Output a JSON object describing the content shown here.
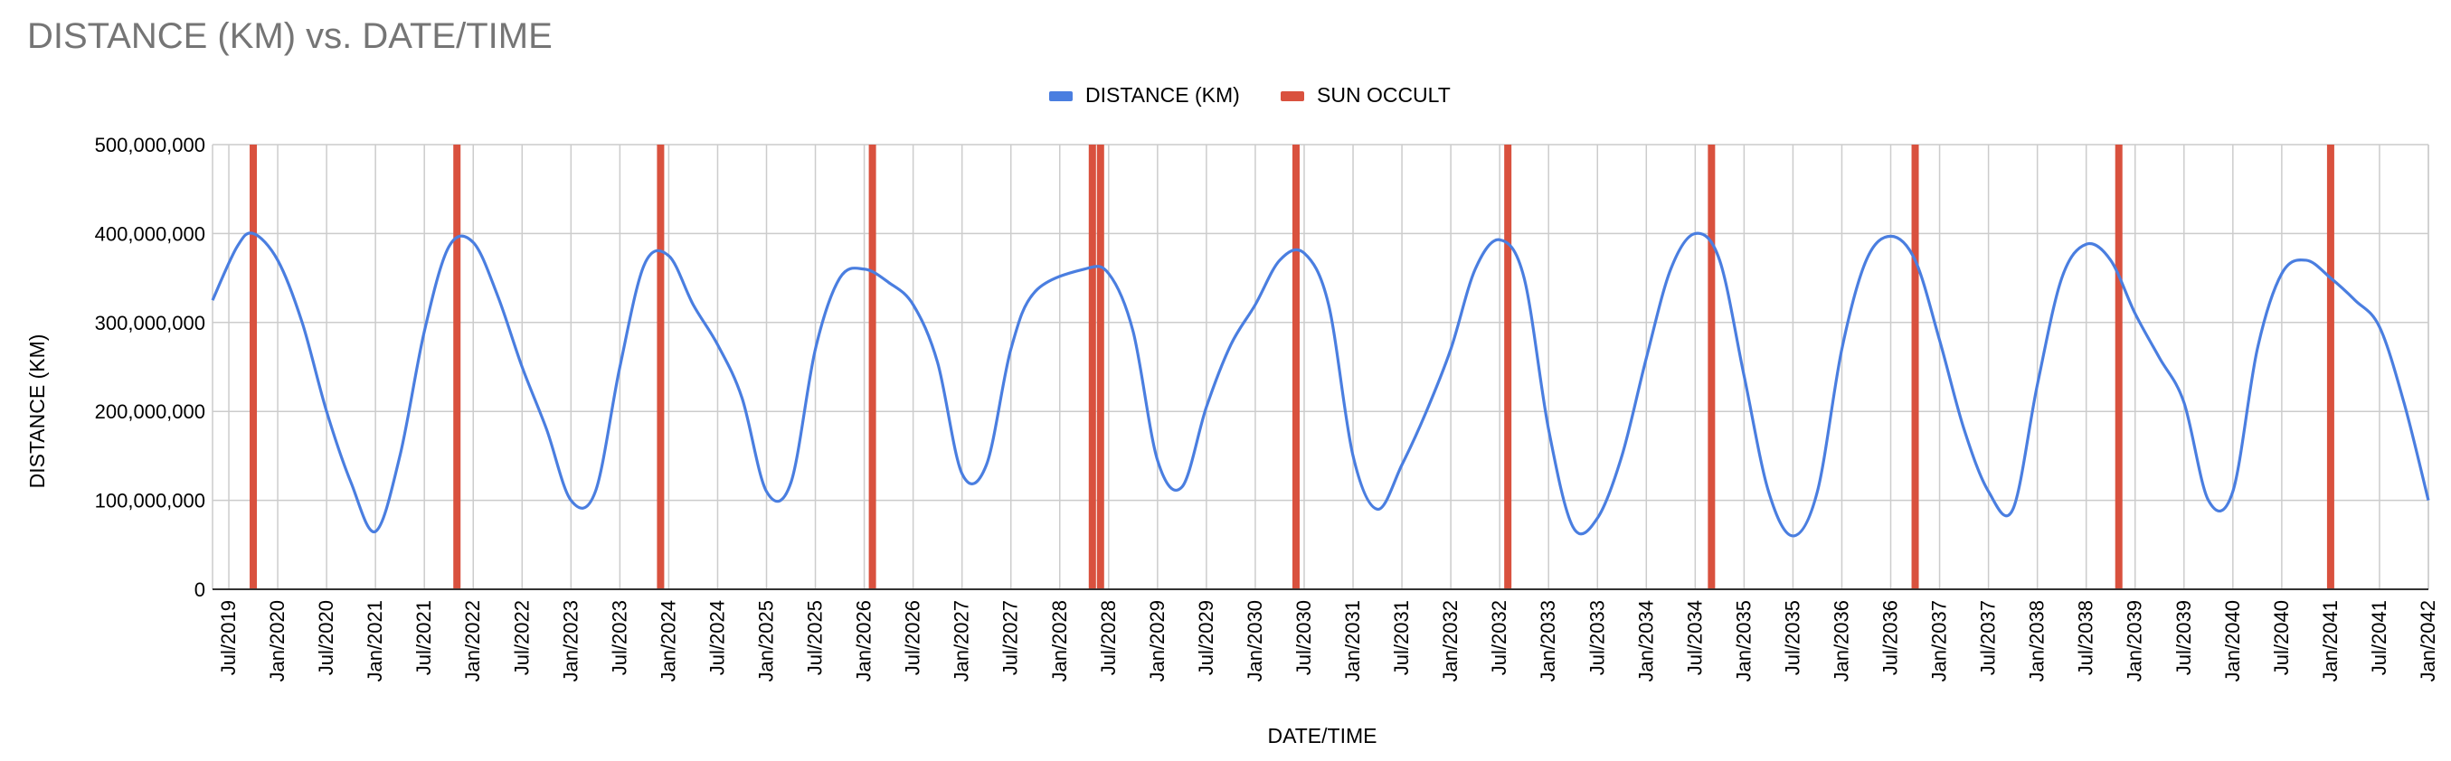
{
  "chart_data": {
    "type": "line",
    "title": "DISTANCE (KM) vs. DATE/TIME",
    "xlabel": "DATE/TIME",
    "ylabel": "DISTANCE (KM)",
    "ylim": [
      0,
      500000000
    ],
    "y_ticks": [
      "0",
      "100,000,000",
      "200,000,000",
      "300,000,000",
      "400,000,000",
      "500,000,000"
    ],
    "xlim": [
      "2019-05",
      "2042-01"
    ],
    "x_ticks": [
      "Jul/2019",
      "Jan/2020",
      "Jul/2020",
      "Jan/2021",
      "Jul/2021",
      "Jan/2022",
      "Jul/2022",
      "Jan/2023",
      "Jul/2023",
      "Jan/2024",
      "Jul/2024",
      "Jan/2025",
      "Jul/2025",
      "Jan/2026",
      "Jul/2026",
      "Jan/2027",
      "Jul/2027",
      "Jan/2028",
      "Jul/2028",
      "Jan/2029",
      "Jul/2029",
      "Jan/2030",
      "Jul/2030",
      "Jan/2031",
      "Jul/2031",
      "Jan/2032",
      "Jul/2032",
      "Jan/2033",
      "Jul/2033",
      "Jan/2034",
      "Jul/2034",
      "Jan/2035",
      "Jul/2035",
      "Jan/2036",
      "Jul/2036",
      "Jan/2037",
      "Jul/2037",
      "Jan/2038",
      "Jul/2038",
      "Jan/2039",
      "Jul/2039",
      "Jan/2040",
      "Jul/2040",
      "Jan/2041",
      "Jul/2041",
      "Jan/2042"
    ],
    "grid": true,
    "legend_position": "top-center",
    "series": [
      {
        "name": "DISTANCE (KM)",
        "kind": "line",
        "color": "#4a7ee0",
        "points": [
          [
            "2019-05",
            325000000
          ],
          [
            "2019-08",
            385000000
          ],
          [
            "2019-10",
            400000000
          ],
          [
            "2020-01",
            370000000
          ],
          [
            "2020-04",
            300000000
          ],
          [
            "2020-07",
            200000000
          ],
          [
            "2020-10",
            120000000
          ],
          [
            "2021-01",
            65000000
          ],
          [
            "2021-04",
            150000000
          ],
          [
            "2021-07",
            290000000
          ],
          [
            "2021-10",
            385000000
          ],
          [
            "2022-01",
            390000000
          ],
          [
            "2022-04",
            330000000
          ],
          [
            "2022-07",
            250000000
          ],
          [
            "2022-10",
            180000000
          ],
          [
            "2023-01",
            100000000
          ],
          [
            "2023-04",
            110000000
          ],
          [
            "2023-07",
            250000000
          ],
          [
            "2023-10",
            365000000
          ],
          [
            "2024-01",
            375000000
          ],
          [
            "2024-04",
            320000000
          ],
          [
            "2024-07",
            275000000
          ],
          [
            "2024-10",
            215000000
          ],
          [
            "2025-01",
            110000000
          ],
          [
            "2025-04",
            120000000
          ],
          [
            "2025-07",
            270000000
          ],
          [
            "2025-10",
            350000000
          ],
          [
            "2026-01",
            360000000
          ],
          [
            "2026-04",
            345000000
          ],
          [
            "2026-07",
            320000000
          ],
          [
            "2026-10",
            255000000
          ],
          [
            "2027-01",
            130000000
          ],
          [
            "2027-04",
            140000000
          ],
          [
            "2027-07",
            270000000
          ],
          [
            "2027-10",
            335000000
          ],
          [
            "2028-04",
            360000000
          ],
          [
            "2028-07",
            355000000
          ],
          [
            "2028-10",
            290000000
          ],
          [
            "2029-01",
            145000000
          ],
          [
            "2029-04",
            115000000
          ],
          [
            "2029-07",
            205000000
          ],
          [
            "2029-10",
            275000000
          ],
          [
            "2030-01",
            320000000
          ],
          [
            "2030-04",
            370000000
          ],
          [
            "2030-07",
            378000000
          ],
          [
            "2030-10",
            320000000
          ],
          [
            "2031-01",
            150000000
          ],
          [
            "2031-04",
            90000000
          ],
          [
            "2031-07",
            140000000
          ],
          [
            "2031-10",
            200000000
          ],
          [
            "2032-01",
            270000000
          ],
          [
            "2032-04",
            360000000
          ],
          [
            "2032-07",
            393000000
          ],
          [
            "2032-10",
            350000000
          ],
          [
            "2033-01",
            180000000
          ],
          [
            "2033-04",
            70000000
          ],
          [
            "2033-07",
            80000000
          ],
          [
            "2033-10",
            150000000
          ],
          [
            "2034-01",
            260000000
          ],
          [
            "2034-04",
            360000000
          ],
          [
            "2034-07",
            400000000
          ],
          [
            "2034-10",
            370000000
          ],
          [
            "2035-01",
            240000000
          ],
          [
            "2035-04",
            110000000
          ],
          [
            "2035-07",
            60000000
          ],
          [
            "2035-10",
            110000000
          ],
          [
            "2036-01",
            270000000
          ],
          [
            "2036-04",
            370000000
          ],
          [
            "2036-07",
            397000000
          ],
          [
            "2036-10",
            370000000
          ],
          [
            "2037-01",
            280000000
          ],
          [
            "2037-04",
            180000000
          ],
          [
            "2037-07",
            110000000
          ],
          [
            "2037-10",
            90000000
          ],
          [
            "2038-01",
            230000000
          ],
          [
            "2038-04",
            350000000
          ],
          [
            "2038-07",
            388000000
          ],
          [
            "2038-10",
            370000000
          ],
          [
            "2039-01",
            310000000
          ],
          [
            "2039-04",
            260000000
          ],
          [
            "2039-07",
            210000000
          ],
          [
            "2039-10",
            100000000
          ],
          [
            "2040-01",
            110000000
          ],
          [
            "2040-04",
            270000000
          ],
          [
            "2040-07",
            355000000
          ],
          [
            "2040-10",
            370000000
          ],
          [
            "2041-01",
            350000000
          ],
          [
            "2041-04",
            325000000
          ],
          [
            "2041-07",
            295000000
          ],
          [
            "2041-10",
            210000000
          ],
          [
            "2042-01",
            100000000
          ]
        ]
      },
      {
        "name": "SUN OCCULT",
        "kind": "vertical-bar",
        "color": "#d9513e",
        "dates": [
          "2019-10",
          "2021-11",
          "2023-12",
          "2026-02",
          "2028-05",
          "2028-06",
          "2030-06",
          "2032-08",
          "2034-09",
          "2036-10",
          "2038-11",
          "2041-01"
        ],
        "values": [
          500000000,
          500000000,
          500000000,
          500000000,
          500000000,
          500000000,
          500000000,
          500000000,
          500000000,
          500000000,
          500000000,
          500000000
        ]
      }
    ]
  }
}
